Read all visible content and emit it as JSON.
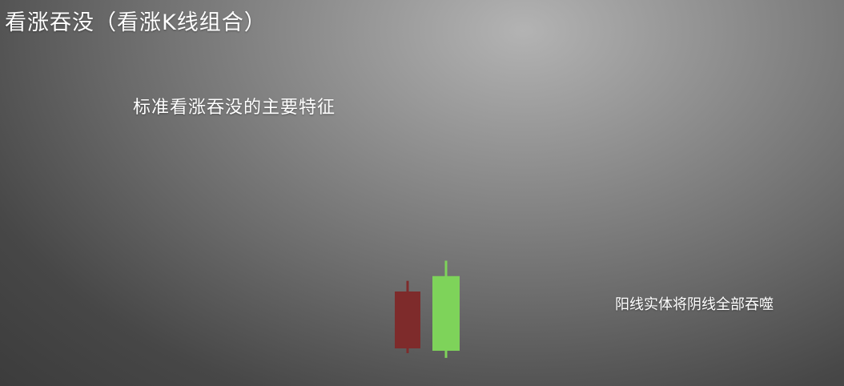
{
  "slide": {
    "title": "看涨吞没（看涨K线组合）",
    "subtitle": "标准看涨吞没的主要特征",
    "note": "阳线实体将阴线全部吞噬"
  },
  "colors": {
    "bearish": "#7e2b2b",
    "bullish": "#7ed35a"
  },
  "chart_data": {
    "type": "candlestick",
    "title": "",
    "xlabel": "",
    "ylabel": "",
    "grid": false,
    "ylim": [
      0,
      100
    ],
    "candles": [
      {
        "direction": "bearish",
        "open": 50,
        "close": 2,
        "high": 59,
        "low": -2
      },
      {
        "direction": "bullish",
        "open": 0,
        "close": 63,
        "high": 76,
        "low": -6
      }
    ]
  }
}
